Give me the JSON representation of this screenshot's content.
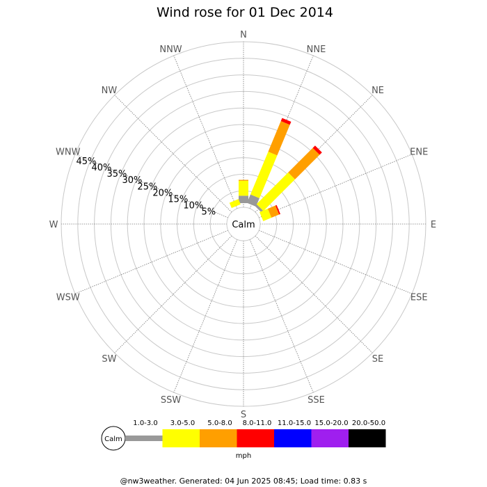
{
  "chart_data": {
    "type": "wind-rose",
    "title": "Wind rose for 01 Dec 2014",
    "directions": [
      "N",
      "NNE",
      "NE",
      "ENE",
      "E",
      "ESE",
      "SE",
      "SSE",
      "S",
      "SSW",
      "SW",
      "WSW",
      "W",
      "WNW",
      "NW",
      "NNW"
    ],
    "radial_ticks": [
      "5%",
      "10%",
      "15%",
      "20%",
      "25%",
      "30%",
      "35%",
      "40%",
      "45%"
    ],
    "radial_max_percent": 50,
    "calm_label": "Calm",
    "speed_bins": [
      "1.0-3.0",
      "3.0-5.0",
      "5.0-8.0",
      "8.0-11.0",
      "11.0-15.0",
      "15.0-20.0",
      "20.0-50.0"
    ],
    "speed_colors": [
      "#999999",
      "#ffff00",
      "#ff9f00",
      "#ff0000",
      "#0000ff",
      "#9f1fef",
      "#000000"
    ],
    "legend_unit": "mph",
    "series": [
      {
        "direction": "N",
        "cumulative_percent": [
          3.5,
          8.0,
          8.3,
          8.3,
          8.3,
          8.3,
          8.3
        ]
      },
      {
        "direction": "NNE",
        "cumulative_percent": [
          4.0,
          18.0,
          28.0,
          29.0,
          29.0,
          29.0,
          29.0
        ]
      },
      {
        "direction": "NE",
        "cumulative_percent": [
          2.0,
          15.5,
          26.0,
          27.0,
          27.0,
          27.0,
          27.0
        ]
      },
      {
        "direction": "ENE",
        "cumulative_percent": [
          0.8,
          3.5,
          6.0,
          6.4,
          6.4,
          6.4,
          6.4
        ]
      },
      {
        "direction": "NNW",
        "cumulative_percent": [
          0.8,
          2.5,
          2.5,
          2.5,
          2.5,
          2.5,
          2.5
        ]
      }
    ]
  },
  "footer": "@nw3weather. Generated: 04 Jun 2025 08:45; Load time: 0.83 s"
}
